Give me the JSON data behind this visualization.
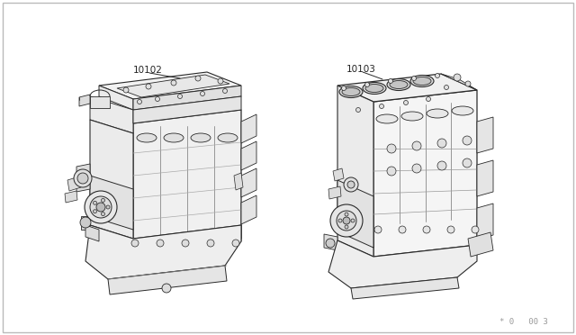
{
  "bg": "#ffffff",
  "lc": "#2a2a2a",
  "lw": 0.7,
  "label_color": "#222222",
  "label_10102": "10102",
  "label_10103": "10103",
  "watermark": "ˆ 0   00 3",
  "fig_width": 6.4,
  "fig_height": 3.72,
  "dpi": 100,
  "border_color": "#bbbbbb"
}
